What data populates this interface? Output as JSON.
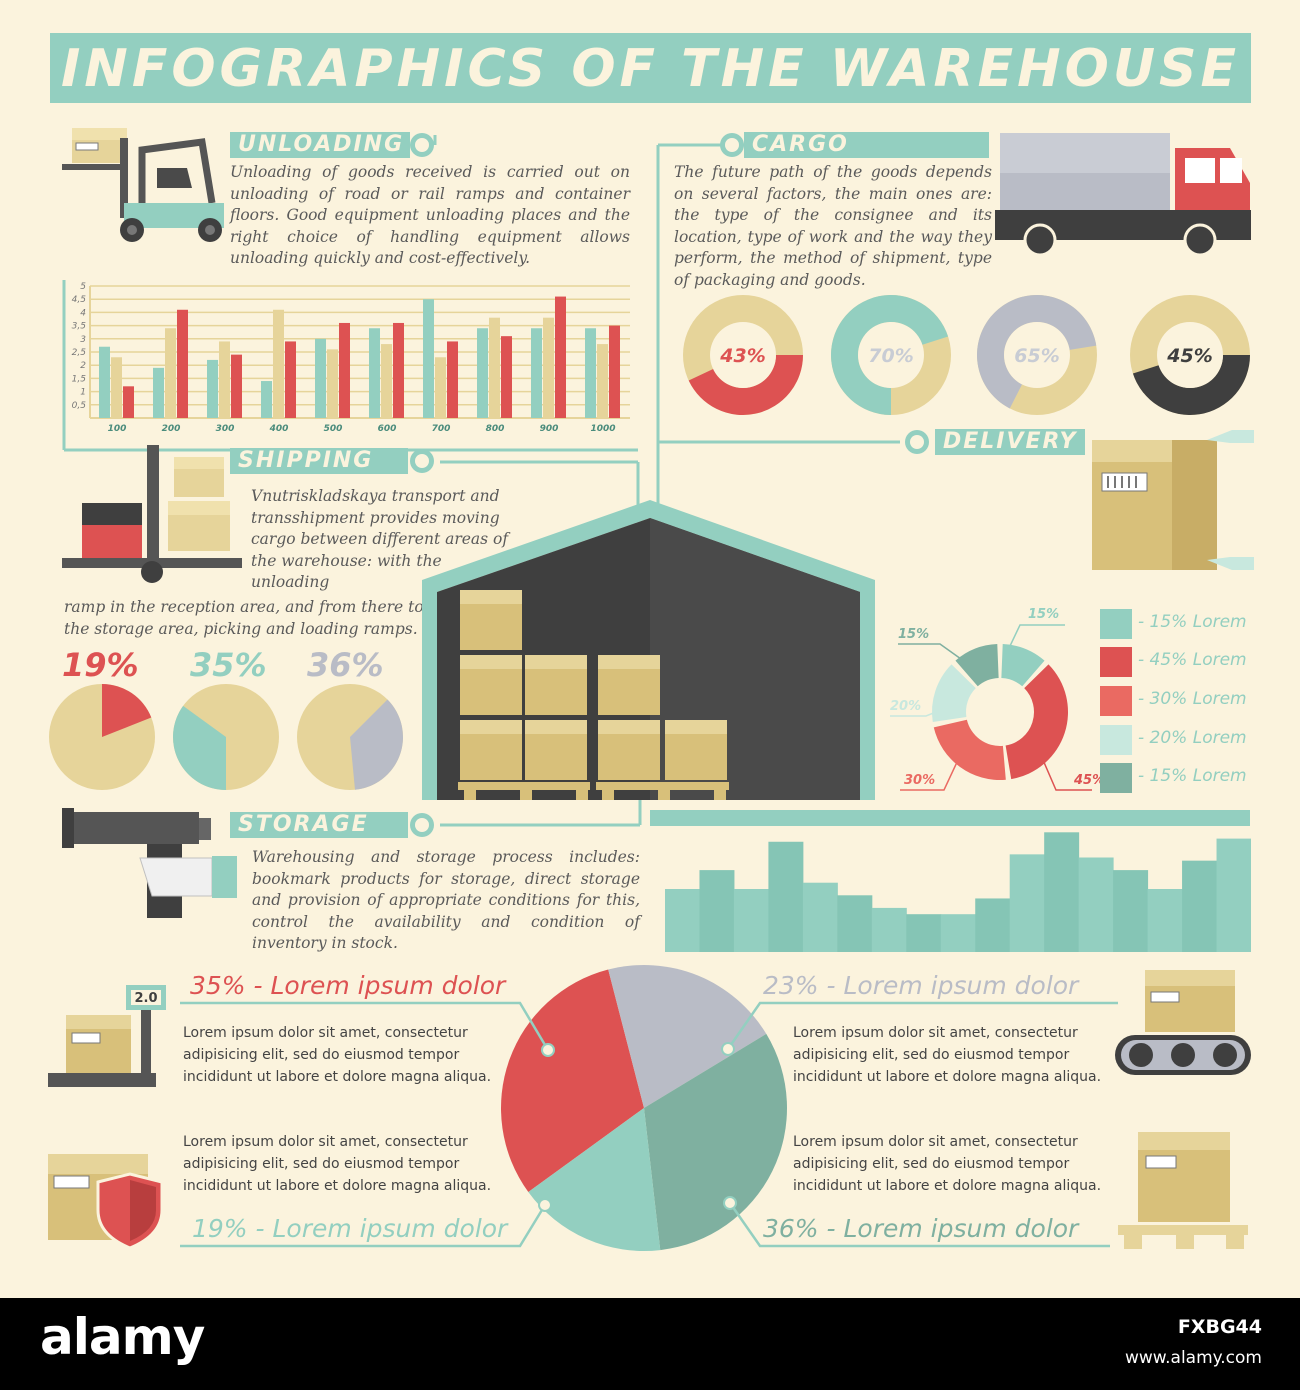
{
  "title": "INFOGRAPHICS OF THE WAREHOUSE",
  "colors": {
    "background": "#fbf3dd",
    "teal": "#93cfc0",
    "red": "#dd5252",
    "tan": "#e6d49a",
    "gray": "#b9bcc6",
    "dark": "#3f3f3f"
  },
  "sections": {
    "unloading": {
      "label": "UNLOADING",
      "text": "Unloading of goods received is carried out on unloading of road or rail ramps and container floors. Good equipment unloading places and the right choice of handling equipment allows unloading quickly and cost-effectively."
    },
    "cargo_shipping": {
      "label": "CARGO SHIPPING",
      "text": "The future path of the goods depends on several factors, the main ones are: the type of the consignee and its location, type of work and the way they perform, the method of shipment, type of packaging and goods."
    },
    "shipping": {
      "label": "SHIPPING",
      "text_top": "Vnutriskladskaya transport and transshipment provides moving cargo between different areas of the warehouse: with the unloading",
      "text_bottom": "ramp in the reception area, and from there to the storage area, picking and loading ramps."
    },
    "delivery": {
      "label": "DELIVERY"
    },
    "storage": {
      "label": "STORAGE",
      "text": "Warehousing and storage process includes: bookmark products for storage, direct storage and provision of appropriate conditions for this, control the availability and condition of inventory in stock."
    }
  },
  "icons": [
    "forklift-icon",
    "truck-icon",
    "pallet-stacker-icon",
    "box-icon",
    "warehouse-icon",
    "barcode-scanner-icon",
    "scale-icon",
    "conveyor-icon",
    "shield-icon",
    "pallet-box-icon"
  ],
  "scale_display": "2.0",
  "unloading_chart": {
    "type": "bar",
    "categories": [
      "100",
      "200",
      "300",
      "400",
      "500",
      "600",
      "700",
      "800",
      "900",
      "1000"
    ],
    "y_ticks": [
      "0,5",
      "1",
      "1,5",
      "2",
      "2,5",
      "3",
      "3,5",
      "4",
      "4,5",
      "5"
    ],
    "ylim": [
      0,
      5
    ],
    "grid": true,
    "series": [
      {
        "values": [
          2.7,
          1.9,
          2.2,
          1.4,
          3.0,
          3.4,
          4.5,
          3.4,
          3.4,
          3.4
        ]
      },
      {
        "values": [
          2.3,
          3.4,
          2.9,
          4.1,
          2.6,
          2.8,
          2.3,
          3.8,
          3.8,
          2.8
        ]
      },
      {
        "values": [
          1.2,
          4.1,
          2.4,
          2.9,
          3.6,
          3.6,
          2.9,
          3.1,
          4.6,
          3.5
        ]
      }
    ]
  },
  "cargo_donuts": [
    {
      "label": "43%",
      "value": 43
    },
    {
      "label": "70%",
      "value": 70
    },
    {
      "label": "65%",
      "value": 65
    },
    {
      "label": "45%",
      "value": 45
    }
  ],
  "shipping_pies": [
    {
      "label": "19%",
      "value": 19
    },
    {
      "label": "35%",
      "value": 35
    },
    {
      "label": "36%",
      "value": 36
    }
  ],
  "delivery_donut": {
    "type": "pie",
    "labels": [
      "15%",
      "45%",
      "30%",
      "20%",
      "15%"
    ],
    "values": [
      15,
      45,
      30,
      20,
      15
    ]
  },
  "legend": [
    {
      "text": "- 15% Lorem",
      "color": "#93cfc0"
    },
    {
      "text": "- 45% Lorem",
      "color": "#dd5252"
    },
    {
      "text": "- 30% Lorem",
      "color": "#ea6a62"
    },
    {
      "text": "- 20% Lorem",
      "color": "#c8e8de"
    },
    {
      "text": "- 15% Lorem",
      "color": "#7fb0a0"
    }
  ],
  "storage_bars": {
    "type": "bar",
    "values": [
      2.0,
      2.6,
      2.0,
      3.5,
      2.2,
      1.8,
      1.4,
      1.2,
      1.2,
      1.7,
      3.1,
      3.8,
      3.0,
      2.6,
      2.0,
      2.9,
      3.6
    ]
  },
  "main_pie": {
    "type": "pie",
    "labels": [
      "35% - Lorem ipsum dolor",
      "23% - Lorem ipsum dolor",
      "36% - Lorem ipsum dolor",
      "19% - Lorem ipsum dolor"
    ],
    "values": [
      35,
      23,
      36,
      19
    ],
    "lorem": "Lorem ipsum dolor sit amet, consectetur adipisicing elit, sed do eiusmod tempor incididunt ut labore et dolore magna aliqua."
  },
  "watermark": {
    "logo": "alamy",
    "image_id": "FXBG44",
    "url": "www.alamy.com"
  }
}
